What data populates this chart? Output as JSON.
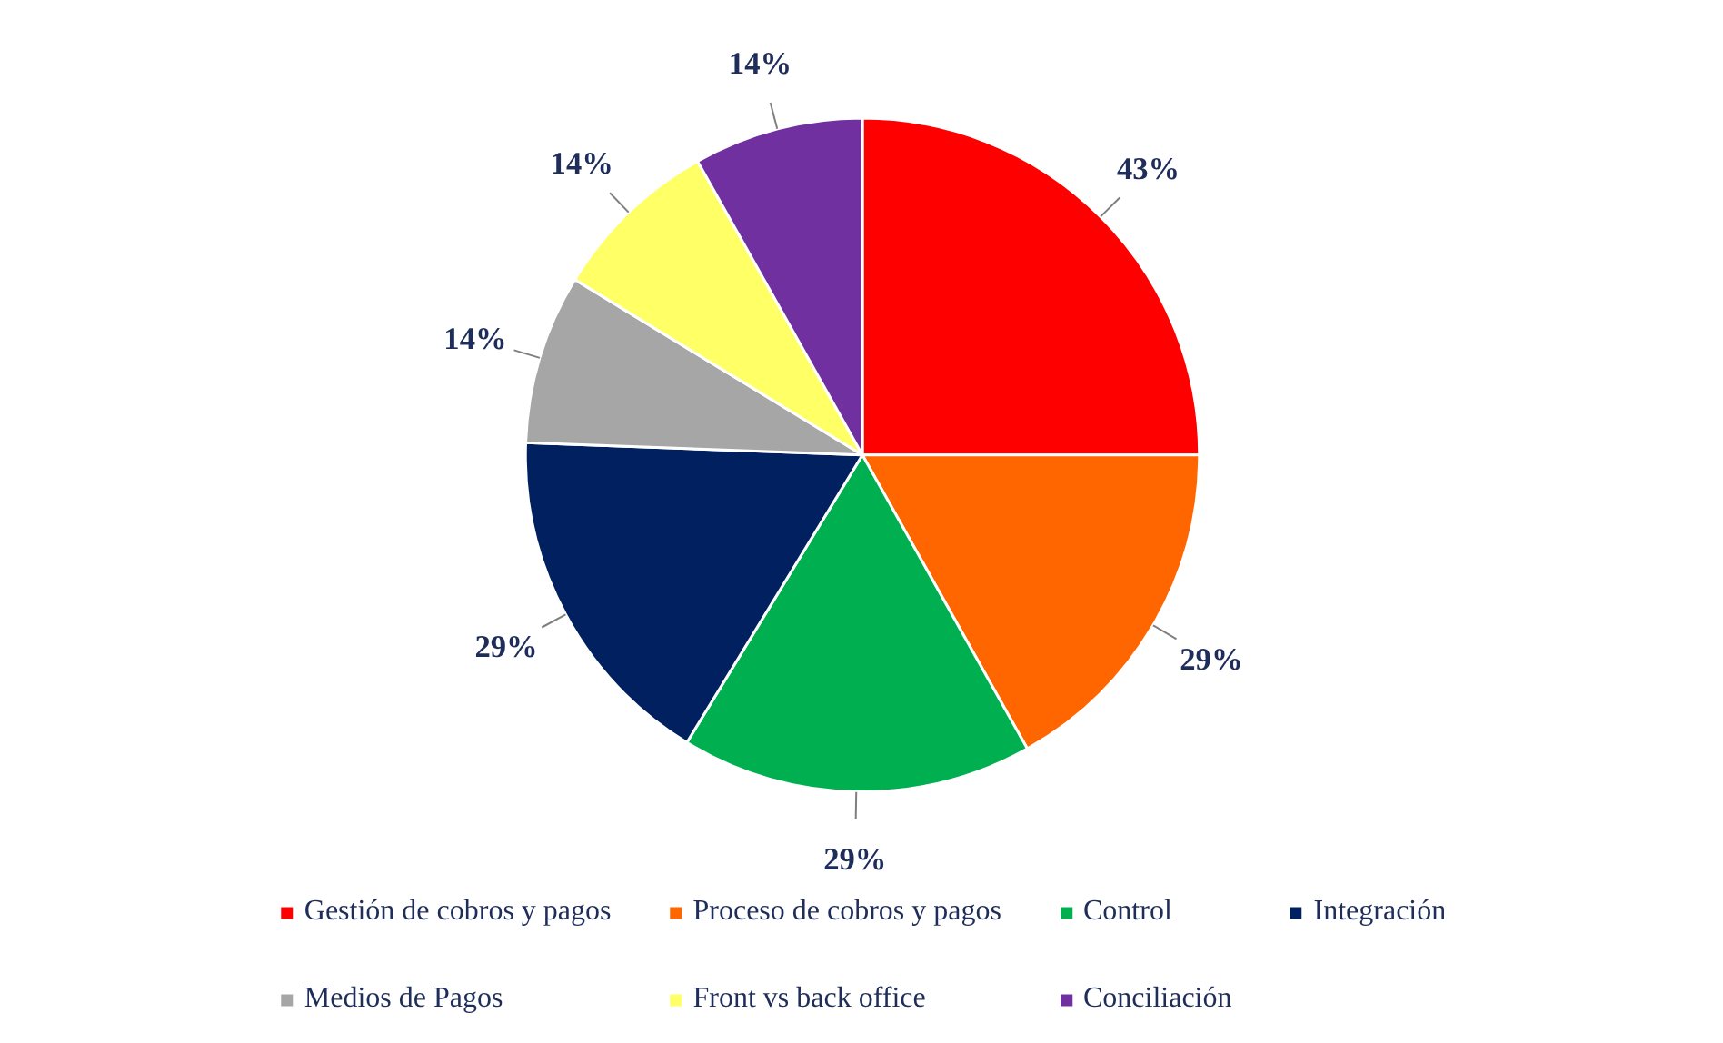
{
  "chart_data": {
    "type": "pie",
    "categories": [
      "Gestión de cobros y pagos",
      "Proceso de cobros y pagos",
      "Control",
      "Integración",
      "Medios de Pagos",
      "Front vs back office",
      "Conciliación"
    ],
    "values": [
      43,
      29,
      29,
      29,
      14,
      14,
      14
    ],
    "colors": [
      "#ff0000",
      "#ff6600",
      "#00b050",
      "#002060",
      "#a6a6a6",
      "#ffff66",
      "#7030a0"
    ],
    "value_labels": [
      "43%",
      "29%",
      "29%",
      "29%",
      "14%",
      "14%",
      "14%"
    ],
    "legend": "bottom"
  }
}
